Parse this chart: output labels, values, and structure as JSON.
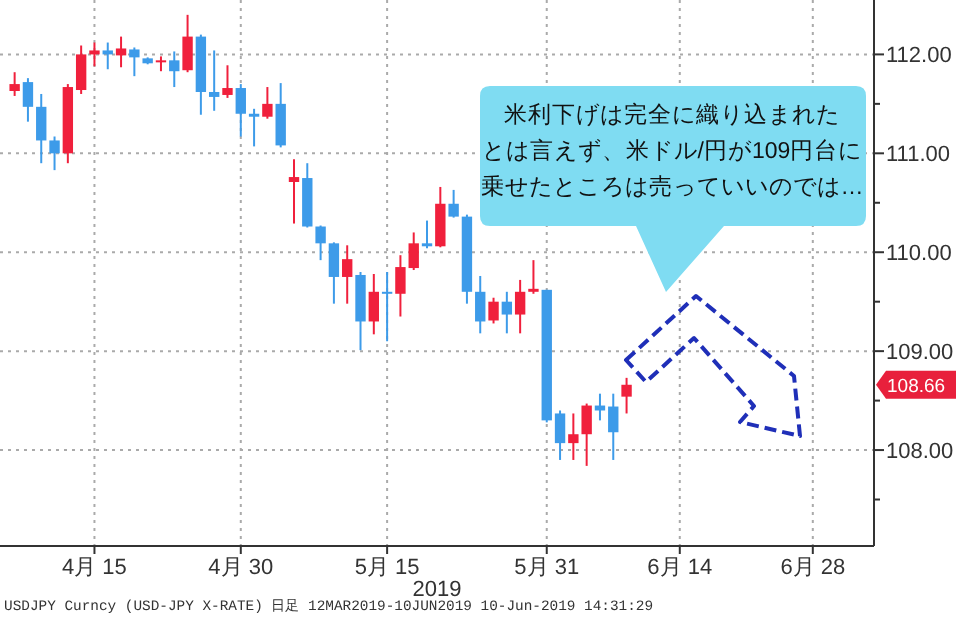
{
  "chart_data": {
    "type": "candlestick",
    "xlabel": "2019",
    "categories": [
      null,
      null,
      null,
      null,
      null,
      null,
      "4月 15",
      null,
      null,
      null,
      null,
      null,
      null,
      null,
      null,
      null,
      null,
      "4月 30",
      null,
      null,
      null,
      null,
      null,
      null,
      null,
      null,
      null,
      null,
      "5月 15",
      null,
      null,
      null,
      null,
      null,
      null,
      null,
      null,
      null,
      null,
      null,
      "5月 31",
      null,
      null,
      null,
      null,
      null,
      null,
      null,
      null,
      null,
      "6月 14",
      null,
      null,
      null,
      null,
      null,
      null,
      null,
      null,
      null,
      "6月 28",
      null,
      null,
      null,
      null
    ],
    "ohlc": [
      [
        111.63,
        111.82,
        111.58,
        111.7
      ],
      [
        111.72,
        111.76,
        111.32,
        111.47
      ],
      [
        111.47,
        111.6,
        110.9,
        111.13
      ],
      [
        111.13,
        111.17,
        110.83,
        111.0
      ],
      [
        111.0,
        111.7,
        110.9,
        111.67
      ],
      [
        111.64,
        112.09,
        111.6,
        112.0
      ],
      [
        112.0,
        112.12,
        111.88,
        112.04
      ],
      [
        112.04,
        112.12,
        111.85,
        112.0
      ],
      [
        111.99,
        112.18,
        111.87,
        112.06
      ],
      [
        112.05,
        112.07,
        111.78,
        111.97
      ],
      [
        111.96,
        111.97,
        111.9,
        111.91
      ],
      [
        111.92,
        111.98,
        111.83,
        111.94
      ],
      [
        111.94,
        112.03,
        111.67,
        111.83
      ],
      [
        111.84,
        112.4,
        111.82,
        112.18
      ],
      [
        112.18,
        112.2,
        111.39,
        111.62
      ],
      [
        111.62,
        112.04,
        111.43,
        111.57
      ],
      [
        111.59,
        111.89,
        111.56,
        111.66
      ],
      [
        111.66,
        111.7,
        111.17,
        111.4
      ],
      [
        111.4,
        111.45,
        111.07,
        111.37
      ],
      [
        111.37,
        111.67,
        111.35,
        111.5
      ],
      [
        111.5,
        111.71,
        111.06,
        111.08
      ],
      [
        110.71,
        110.94,
        110.29,
        110.76
      ],
      [
        110.75,
        110.9,
        110.25,
        110.26
      ],
      [
        110.26,
        110.27,
        109.92,
        110.09
      ],
      [
        110.09,
        110.1,
        109.48,
        109.75
      ],
      [
        109.75,
        110.07,
        109.48,
        109.93
      ],
      [
        109.77,
        109.8,
        109.01,
        109.3
      ],
      [
        109.3,
        109.78,
        109.17,
        109.6
      ],
      [
        109.6,
        109.8,
        109.1,
        109.58
      ],
      [
        109.58,
        109.97,
        109.35,
        109.85
      ],
      [
        109.84,
        110.2,
        109.82,
        110.09
      ],
      [
        110.09,
        110.32,
        110.04,
        110.06
      ],
      [
        110.06,
        110.66,
        110.05,
        110.49
      ],
      [
        110.49,
        110.63,
        110.35,
        110.36
      ],
      [
        110.36,
        110.38,
        109.48,
        109.6
      ],
      [
        109.6,
        109.76,
        109.18,
        109.3
      ],
      [
        109.31,
        109.54,
        109.28,
        109.5
      ],
      [
        109.5,
        109.6,
        109.18,
        109.37
      ],
      [
        109.37,
        109.72,
        109.18,
        109.6
      ],
      [
        109.6,
        109.92,
        109.58,
        109.63
      ],
      [
        109.62,
        109.62,
        108.28,
        108.3
      ],
      [
        108.37,
        108.4,
        107.9,
        108.07
      ],
      [
        108.07,
        108.37,
        107.9,
        108.16
      ],
      [
        108.16,
        108.47,
        107.84,
        108.45
      ],
      [
        108.45,
        108.57,
        108.3,
        108.4
      ],
      [
        108.44,
        108.57,
        107.9,
        108.18
      ],
      [
        108.54,
        108.73,
        108.37,
        108.66
      ],
      null,
      null,
      null,
      null,
      null,
      null,
      null,
      null,
      null,
      null,
      null,
      null,
      null,
      null,
      null,
      null,
      null,
      null
    ],
    "colors": [
      "#f0203c",
      "#3d9be9",
      "#3d9be9",
      "#3d9be9",
      "#f0203c",
      "#f0203c",
      "#f0203c",
      "#3d9be9",
      "#f0203c",
      "#3d9be9",
      "#3d9be9",
      "#f0203c",
      "#3d9be9",
      "#f0203c",
      "#3d9be9",
      "#3d9be9",
      "#f0203c",
      "#3d9be9",
      "#3d9be9",
      "#f0203c",
      "#3d9be9",
      "#f0203c",
      "#3d9be9",
      "#3d9be9",
      "#3d9be9",
      "#f0203c",
      "#3d9be9",
      "#f0203c",
      "#3d9be9",
      "#f0203c",
      "#f0203c",
      "#3d9be9",
      "#f0203c",
      "#3d9be9",
      "#3d9be9",
      "#3d9be9",
      "#f0203c",
      "#3d9be9",
      "#f0203c",
      "#f0203c",
      "#3d9be9",
      "#3d9be9",
      "#f0203c",
      "#f0203c",
      "#3d9be9",
      "#3d9be9",
      "#f0203c",
      null,
      null,
      null,
      null,
      null,
      null,
      null,
      null,
      null,
      null,
      null,
      null,
      null,
      null,
      null,
      null,
      null,
      null
    ],
    "ylim": [
      107.03,
      112.55
    ],
    "yticks": [
      {
        "value": 107.5,
        "label": null
      },
      {
        "value": 108,
        "label": "108.00"
      },
      {
        "value": 108.5,
        "label": null
      },
      {
        "value": 109,
        "label": "109.00"
      },
      {
        "value": 109.5,
        "label": null
      },
      {
        "value": 110,
        "label": "110.00"
      },
      {
        "value": 110.5,
        "label": null
      },
      {
        "value": 111,
        "label": "111.00"
      },
      {
        "value": 111.5,
        "label": null
      },
      {
        "value": 112,
        "label": "112.00"
      }
    ],
    "grid": true,
    "annotations": [
      "米利下げは完全に織り込まれた",
      "とは言えず、米ドル/円が109円台に",
      "乗せたところは売っていいのでは…",
      "108.66",
      "USDJPY Curncy (USD-JPY X-RATE) 日足 12MAR2019-10JUN2019 10-Jun-2019 14:31:29"
    ]
  }
}
